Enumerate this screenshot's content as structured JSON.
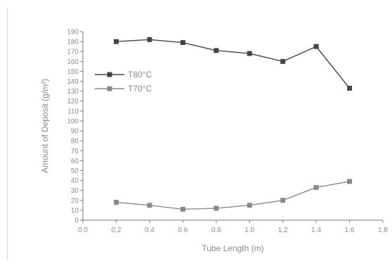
{
  "chart_data": {
    "type": "line",
    "title": "",
    "xlabel": "Tube Length (m)",
    "ylabel": "Amount of Deposit (g/m²)",
    "xlim": [
      0.0,
      1.8
    ],
    "ylim": [
      0,
      190
    ],
    "x_ticks": [
      "0.0",
      "0.2",
      "0.4",
      "0.6",
      "0.8",
      "1.0",
      "1.2",
      "1.4",
      "1.6",
      "1.8"
    ],
    "y_ticks": [
      "0",
      "10",
      "20",
      "30",
      "40",
      "50",
      "60",
      "70",
      "80",
      "90",
      "100",
      "110",
      "120",
      "130",
      "140",
      "150",
      "160",
      "170",
      "180",
      "190"
    ],
    "grid": false,
    "legend_position": "upper-left",
    "series": [
      {
        "name": "T80°C",
        "marker": "square",
        "color": "#444444",
        "x": [
          0.2,
          0.4,
          0.6,
          0.8,
          1.0,
          1.2,
          1.4,
          1.6
        ],
        "y": [
          180,
          182,
          179,
          171,
          168,
          160,
          175,
          133
        ]
      },
      {
        "name": "T70°C",
        "marker": "square",
        "color": "#8a8a8a",
        "x": [
          0.2,
          0.4,
          0.6,
          0.8,
          1.0,
          1.2,
          1.4,
          1.6
        ],
        "y": [
          18,
          15,
          11,
          12,
          15,
          20,
          33,
          39
        ]
      }
    ]
  }
}
